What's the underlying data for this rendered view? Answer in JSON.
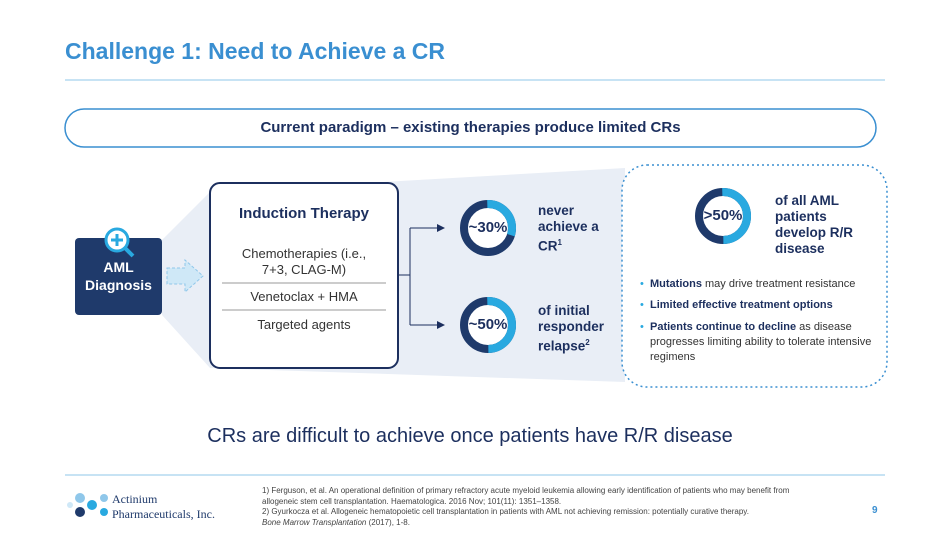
{
  "header": {
    "title": "Challenge 1: Need to Achieve a CR"
  },
  "banner": "Current paradigm – existing therapies produce limited CRs",
  "diagnosis": "AML Diagnosis",
  "induction": {
    "title": "Induction Therapy",
    "items": [
      "Chemotherapies (i.e., 7+3, CLAG-M)",
      "Venetoclax + HMA",
      "Targeted agents"
    ]
  },
  "stats": [
    {
      "value": 30,
      "value_label": "~30%",
      "text": "never achieve a CR",
      "note": "1"
    },
    {
      "value": 50,
      "value_label": "~50%",
      "text": "of initial responder relapse",
      "note": "2"
    },
    {
      "value": 50,
      "value_label": ">50%",
      "text": "of all AML patients develop R/R disease"
    }
  ],
  "bullets": [
    {
      "bold": "Mutations",
      "rest": "may drive treatment resistance"
    },
    {
      "bold": "Limited effective treatment options",
      "rest": ""
    },
    {
      "bold": "Patients continue to decline",
      "rest": "as disease progresses limiting ability to tolerate intensive regimens"
    }
  ],
  "conclusion": "CRs are difficult to achieve once patients have R/R disease",
  "footnotes": [
    "1) Ferguson, et al. An operational definition of primary refractory acute myeloid leukemia allowing early identification of patients who may benefit from allogeneic stem cell transplantation. Haematologica. 2016 Nov; 101(11): 1351–1358.",
    "2) Gyurkocza et al. Allogeneic hematopoietic cell transplantation in patients with AML not achieving remission: potentially curative therapy."
  ],
  "footnote_journal": "Bone Marrow Transplantation",
  "footnote_tail": "(2017), 1-8.",
  "logo": {
    "line1": "Actinium",
    "line2": "Pharmaceuticals, Inc."
  },
  "page_number": 9
}
